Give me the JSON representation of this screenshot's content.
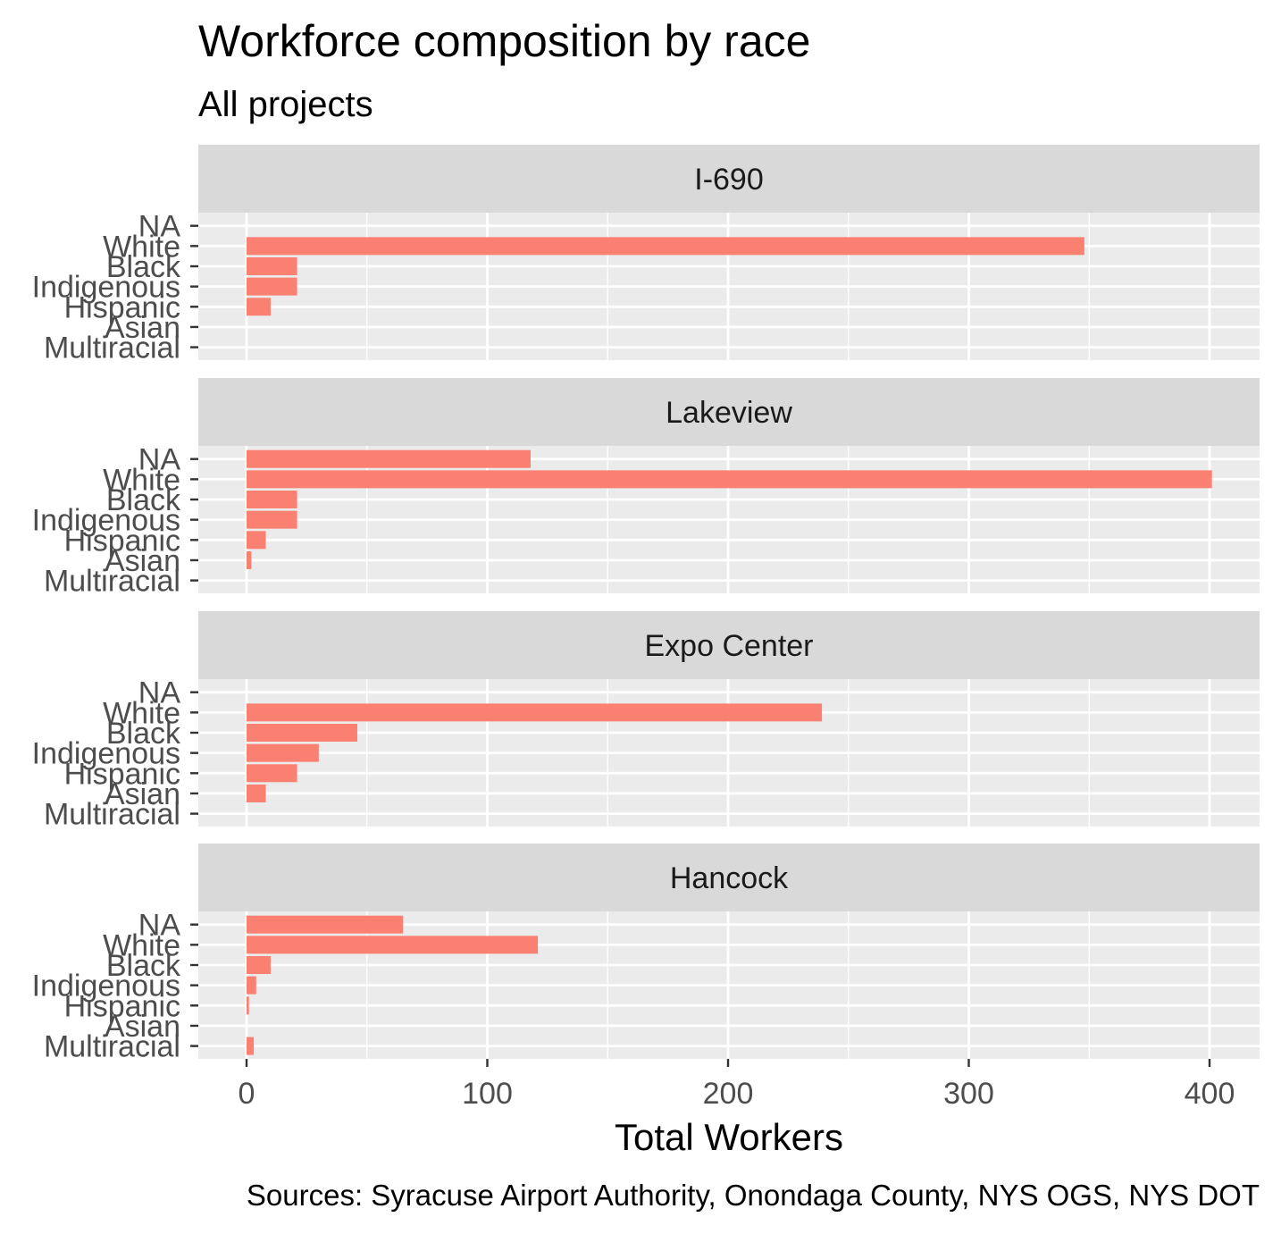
{
  "colors": {
    "bar": "#fa8072",
    "panel": "#ebebeb",
    "strip": "#d9d9d9",
    "grid": "#ffffff"
  },
  "chart_data": {
    "type": "bar",
    "orientation": "horizontal",
    "title": "Workforce composition by race",
    "subtitle": "All projects",
    "xlabel": "Total Workers",
    "ylabel": "",
    "caption": "Sources: Syracuse Airport Authority, Onondaga County, NYS OGS, NYS DOT",
    "xlim": [
      -20,
      420
    ],
    "x_ticks": [
      0,
      100,
      200,
      300,
      400
    ],
    "grid": true,
    "categories": [
      "NA",
      "White",
      "Black",
      "Indigenous",
      "Hispanic",
      "Asian",
      "Multiracial"
    ],
    "facets": [
      {
        "name": "I-690",
        "values": [
          0,
          348,
          21,
          21,
          10,
          0,
          0
        ]
      },
      {
        "name": "Lakeview",
        "values": [
          118,
          401,
          21,
          21,
          8,
          2,
          0
        ]
      },
      {
        "name": "Expo Center",
        "values": [
          0,
          239,
          46,
          30,
          21,
          8,
          0
        ]
      },
      {
        "name": "Hancock",
        "values": [
          65,
          121,
          10,
          4,
          1,
          0,
          3
        ]
      }
    ]
  }
}
